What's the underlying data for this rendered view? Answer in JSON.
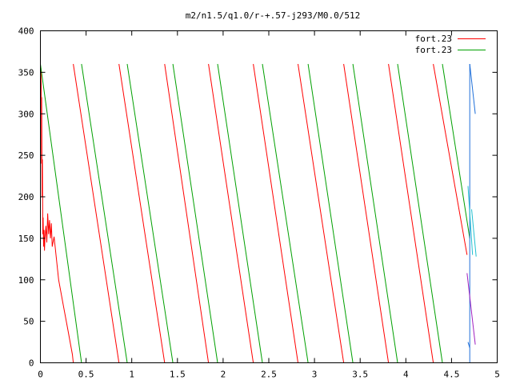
{
  "chart_data": {
    "type": "line",
    "title": "m2/n1.5/q1.0/r-+.57-j293/M0.0/512",
    "xlabel": "",
    "ylabel": "",
    "xlim": [
      0,
      5
    ],
    "ylim": [
      0,
      400
    ],
    "grid": false,
    "legend_position": "top-right",
    "x_ticks": [
      0,
      0.5,
      1,
      1.5,
      2,
      2.5,
      3,
      3.5,
      4,
      4.5,
      5
    ],
    "x_tick_labels": [
      "0",
      "0.5",
      "1",
      "1.5",
      "2",
      "2.5",
      "3",
      "3.5",
      "4",
      "4.5",
      "5"
    ],
    "y_ticks": [
      0,
      50,
      100,
      150,
      200,
      250,
      300,
      350,
      400
    ],
    "y_tick_labels": [
      "0",
      "50",
      "100",
      "150",
      "200",
      "250",
      "300",
      "350",
      "400"
    ],
    "legend": [
      "fort.23",
      "fort.23"
    ],
    "series": [
      {
        "name": "fort.23",
        "color": "#ff0000",
        "segments": [
          [
            [
              0.005,
              355
            ],
            [
              0.01,
              330
            ],
            [
              0.012,
              240
            ],
            [
              0.014,
              320
            ],
            [
              0.018,
              200
            ],
            [
              0.022,
              245
            ],
            [
              0.026,
              155
            ],
            [
              0.03,
              175
            ],
            [
              0.035,
              140
            ],
            [
              0.04,
              160
            ],
            [
              0.045,
              135
            ],
            [
              0.05,
              150
            ],
            [
              0.06,
              165
            ],
            [
              0.07,
              145
            ],
            [
              0.08,
              180
            ],
            [
              0.09,
              155
            ],
            [
              0.1,
              172
            ],
            [
              0.11,
              150
            ],
            [
              0.12,
              168
            ],
            [
              0.13,
              140
            ],
            [
              0.15,
              152
            ],
            [
              0.18,
              120
            ],
            [
              0.2,
              100
            ],
            [
              0.25,
              70
            ],
            [
              0.3,
              40
            ],
            [
              0.35,
              10
            ],
            [
              0.36,
              0
            ]
          ],
          [
            [
              0.36,
              360
            ],
            [
              0.86,
              0
            ]
          ],
          [
            [
              0.86,
              360
            ],
            [
              1.36,
              0
            ]
          ],
          [
            [
              1.36,
              360
            ],
            [
              1.84,
              0
            ]
          ],
          [
            [
              1.84,
              360
            ],
            [
              2.33,
              0
            ]
          ],
          [
            [
              2.33,
              360
            ],
            [
              2.82,
              0
            ]
          ],
          [
            [
              2.82,
              360
            ],
            [
              3.32,
              0
            ]
          ],
          [
            [
              3.32,
              360
            ],
            [
              3.81,
              0
            ]
          ],
          [
            [
              3.81,
              360
            ],
            [
              4.3,
              0
            ]
          ],
          [
            [
              4.3,
              360
            ],
            [
              4.67,
              130
            ]
          ]
        ]
      },
      {
        "name": "fort.23",
        "color": "#00a000",
        "segments": [
          [
            [
              0.0,
              360
            ],
            [
              0.45,
              0
            ]
          ],
          [
            [
              0.45,
              360
            ],
            [
              0.95,
              0
            ]
          ],
          [
            [
              0.95,
              360
            ],
            [
              1.45,
              0
            ]
          ],
          [
            [
              1.45,
              360
            ],
            [
              1.94,
              0
            ]
          ],
          [
            [
              1.94,
              360
            ],
            [
              2.43,
              0
            ]
          ],
          [
            [
              2.43,
              360
            ],
            [
              2.93,
              0
            ]
          ],
          [
            [
              2.93,
              360
            ],
            [
              3.42,
              0
            ]
          ],
          [
            [
              3.42,
              360
            ],
            [
              3.91,
              0
            ]
          ],
          [
            [
              3.91,
              360
            ],
            [
              4.4,
              0
            ]
          ],
          [
            [
              4.4,
              360
            ],
            [
              4.7,
              150
            ]
          ]
        ]
      },
      {
        "name": "",
        "color": "#1e6fd9",
        "segments": [
          [
            [
              4.7,
              360
            ],
            [
              4.76,
              300
            ]
          ],
          [
            [
              4.68,
              25
            ],
            [
              4.7,
              18
            ]
          ],
          [
            [
              4.7,
              0
            ],
            [
              4.7,
              360
            ]
          ]
        ]
      },
      {
        "name": "",
        "color": "#20c0d0",
        "segments": [
          [
            [
              4.68,
              213
            ],
            [
              4.73,
              130
            ]
          ],
          [
            [
              4.72,
              185
            ],
            [
              4.77,
              128
            ]
          ]
        ]
      },
      {
        "name": "",
        "color": "#a020c0",
        "segments": [
          [
            [
              4.67,
              108
            ],
            [
              4.76,
              22
            ]
          ]
        ]
      }
    ]
  }
}
